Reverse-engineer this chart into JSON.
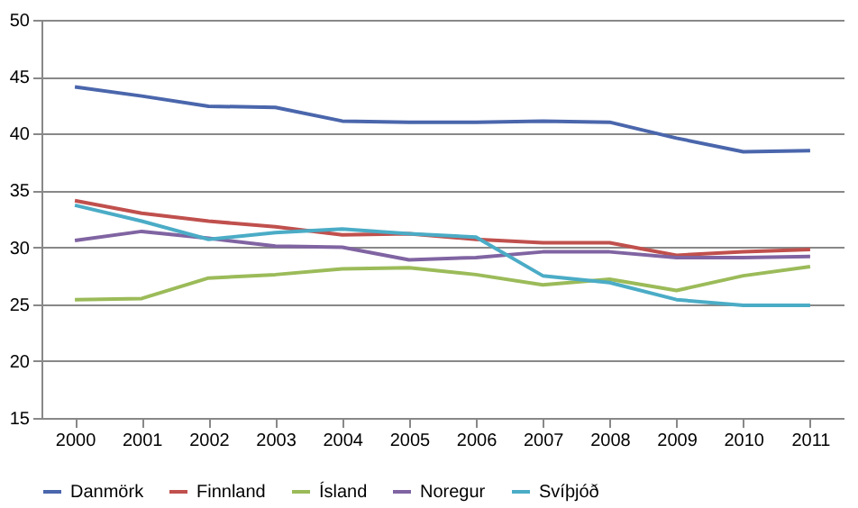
{
  "chart_data": {
    "type": "line",
    "categories": [
      "2000",
      "2001",
      "2002",
      "2003",
      "2004",
      "2005",
      "2006",
      "2007",
      "2008",
      "2009",
      "2010",
      "2011"
    ],
    "series": [
      {
        "name": "Danmörk",
        "color": "#4a66ac",
        "values": [
          44.1,
          43.3,
          42.4,
          42.3,
          41.1,
          41.0,
          41.0,
          41.1,
          41.0,
          39.6,
          38.4,
          38.5
        ]
      },
      {
        "name": "Finnland",
        "color": "#c0504d",
        "values": [
          34.1,
          33.0,
          32.3,
          31.8,
          31.1,
          31.2,
          30.7,
          30.4,
          30.4,
          29.3,
          29.6,
          29.8
        ]
      },
      {
        "name": "Ísland",
        "color": "#9bbb59",
        "values": [
          25.4,
          25.5,
          27.3,
          27.6,
          28.1,
          28.2,
          27.6,
          26.7,
          27.2,
          26.2,
          27.5,
          28.3
        ]
      },
      {
        "name": "Noregur",
        "color": "#8064a2",
        "values": [
          30.6,
          31.4,
          30.8,
          30.1,
          30.0,
          28.9,
          29.1,
          29.6,
          29.6,
          29.1,
          29.1,
          29.2
        ]
      },
      {
        "name": "Svíþjóð",
        "color": "#4bacc6",
        "values": [
          33.7,
          32.3,
          30.7,
          31.3,
          31.6,
          31.2,
          30.9,
          27.5,
          26.9,
          25.4,
          24.9,
          24.9
        ]
      }
    ],
    "ylim": [
      15,
      50
    ],
    "yticks": [
      15,
      20,
      25,
      30,
      35,
      40,
      45,
      50
    ],
    "grid": "y",
    "legend": "bottom",
    "marker": "none",
    "line_style": "solid"
  }
}
